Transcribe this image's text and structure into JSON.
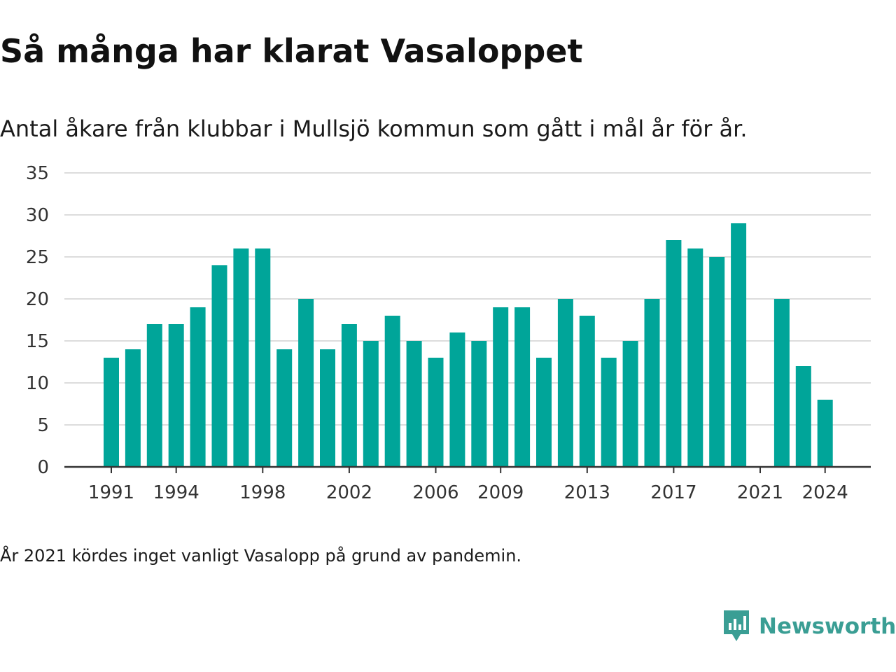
{
  "title": "Så många har klarat Vasaloppet",
  "subtitle": "Antal åkare från klubbar i Mullsjö kommun som gått i mål år för år.",
  "footnote": "År 2021 kördes inget vanligt Vasalopp på grund av pandemin.",
  "brand": {
    "name": "Newsworthy",
    "color": "#3a9e94"
  },
  "colors": {
    "bar": "#00a599",
    "grid": "#dddddd",
    "axis": "#333333"
  },
  "chart_data": {
    "type": "bar",
    "title": "Så många har klarat Vasaloppet",
    "subtitle": "Antal åkare från klubbar i Mullsjö kommun som gått i mål år för år.",
    "xlabel": "",
    "ylabel": "",
    "ylim": [
      0,
      35
    ],
    "yticks": [
      0,
      5,
      10,
      15,
      20,
      25,
      30,
      35
    ],
    "xtick_labels": [
      "1991",
      "1994",
      "1998",
      "2002",
      "2006",
      "2009",
      "2013",
      "2017",
      "2021",
      "2024"
    ],
    "grid": true,
    "legend": "none",
    "categories": [
      "1991",
      "1992",
      "1993",
      "1994",
      "1995",
      "1996",
      "1997",
      "1998",
      "1999",
      "2000",
      "2001",
      "2002",
      "2003",
      "2004",
      "2005",
      "2006",
      "2007",
      "2008",
      "2009",
      "2010",
      "2011",
      "2012",
      "2013",
      "2014",
      "2015",
      "2016",
      "2017",
      "2018",
      "2019",
      "2020",
      "2021",
      "2022",
      "2023",
      "2024"
    ],
    "values": [
      13,
      14,
      17,
      17,
      19,
      24,
      26,
      26,
      14,
      20,
      14,
      17,
      15,
      18,
      15,
      13,
      16,
      15,
      19,
      19,
      13,
      20,
      18,
      13,
      15,
      20,
      27,
      26,
      25,
      29,
      null,
      20,
      12,
      8
    ]
  }
}
